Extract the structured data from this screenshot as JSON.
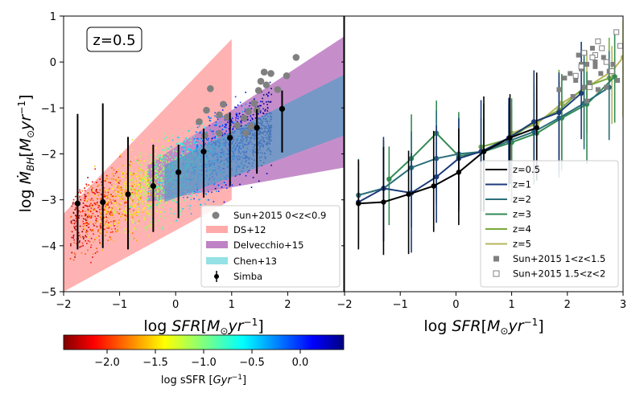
{
  "chart_data": [
    {
      "type": "scatter",
      "panel": "left",
      "annotation": "z=0.5",
      "xlabel": "log SFR[M⊙yr⁻¹]",
      "ylabel": "log Ṁ_BH[M⊙yr⁻¹]",
      "xlim": [
        -2,
        3
      ],
      "ylim": [
        -5,
        1
      ],
      "xticks": [
        -2,
        -1,
        0,
        1,
        2
      ],
      "yticks": [
        -5,
        -4,
        -3,
        -2,
        -1,
        0,
        1
      ],
      "legend_position": "bottom-right",
      "legend": [
        "Sun+2015 0<z<0.9",
        "DS+12",
        "Delvecchio+15",
        "Chen+13",
        "Simba"
      ],
      "simba": {
        "x": [
          -1.75,
          -1.3,
          -0.85,
          -0.4,
          0.05,
          0.5,
          0.97,
          1.45,
          1.9
        ],
        "y": [
          -3.08,
          -3.05,
          -2.88,
          -2.7,
          -2.4,
          -1.95,
          -1.65,
          -1.43,
          -1.02
        ],
        "err_low": [
          1.0,
          1.0,
          1.2,
          1.0,
          1.0,
          1.0,
          1.05,
          1.0,
          0.95
        ],
        "err_high": [
          1.95,
          2.15,
          1.25,
          0.9,
          0.6,
          0.5,
          0.55,
          0.4,
          0.4
        ]
      },
      "sun2015": {
        "x": [
          0.55,
          0.62,
          0.78,
          0.85,
          0.92,
          0.42,
          0.52,
          0.78,
          1.1,
          1.22,
          1.3,
          1.35,
          1.4,
          1.48,
          1.52,
          1.58,
          1.62,
          1.7,
          1.82,
          1.98,
          2.15,
          1.25,
          1.45
        ],
        "y": [
          -1.05,
          -0.58,
          -1.15,
          -0.92,
          -1.2,
          -1.3,
          -1.6,
          -1.55,
          -1.38,
          -1.22,
          -1.08,
          -1.4,
          -0.9,
          -0.62,
          -0.42,
          -0.22,
          -0.5,
          -0.25,
          -0.6,
          -0.3,
          0.1,
          -1.55,
          -1.05
        ]
      },
      "bands": {
        "DS+12": {
          "x": [
            -2,
            1
          ],
          "upper": [
            -3.3,
            0.5
          ],
          "lower": [
            -5,
            -3
          ]
        },
        "Delvecchio+15": {
          "x": [
            -0.5,
            3
          ],
          "upper": [
            -2.25,
            0.55
          ],
          "lower": [
            -3.05,
            -2.3
          ]
        },
        "Chen+13": {
          "x": [
            -0.2,
            3
          ],
          "upper": [
            -2.25,
            -0.28
          ],
          "lower": [
            -3.05,
            -1.6
          ]
        }
      },
      "colorbar": {
        "label": "log sSFR [Gyr⁻¹]",
        "range": [
          -2.45,
          0.45
        ],
        "ticks": [
          -2.0,
          -1.5,
          -1.0,
          -0.5,
          0.0
        ],
        "tick_labels": [
          "−2.0",
          "−1.5",
          "−1.0",
          "−0.5",
          "0.0"
        ]
      }
    },
    {
      "type": "line",
      "panel": "right",
      "xlabel": "log SFR[M⊙yr⁻¹]",
      "xlim": [
        -2,
        3
      ],
      "ylim": [
        -5,
        1
      ],
      "xticks": [
        -2,
        -1,
        0,
        1,
        2,
        3
      ],
      "legend_position": "bottom-right",
      "series": [
        {
          "name": "z=0.5",
          "color": "#000000",
          "x": [
            -1.75,
            -1.3,
            -0.85,
            -0.4,
            0.05,
            0.5,
            0.97,
            1.45
          ],
          "y": [
            -3.08,
            -3.05,
            -2.88,
            -2.7,
            -2.4,
            -1.95,
            -1.65,
            -1.43
          ]
        },
        {
          "name": "z=1",
          "color": "#1d3b78",
          "x": [
            -1.75,
            -1.3,
            -0.8,
            -0.35,
            0.05,
            0.45,
            0.95,
            1.4,
            1.85,
            2.25
          ],
          "y": [
            -3.05,
            -2.75,
            -2.85,
            -2.5,
            -2.1,
            -1.95,
            -1.65,
            -1.3,
            -1.1,
            -0.68
          ]
        },
        {
          "name": "z=2",
          "color": "#2b6f7a",
          "x": [
            -1.75,
            -1.3,
            -0.8,
            -0.35,
            0.05,
            0.5,
            0.95,
            1.4,
            1.85,
            2.3,
            2.75
          ],
          "y": [
            -2.9,
            -2.75,
            -2.3,
            -2.1,
            -2.0,
            -1.95,
            -1.72,
            -1.52,
            -1.22,
            -0.9,
            -0.55
          ]
        },
        {
          "name": "z=3",
          "color": "#338a55",
          "x": [
            -1.2,
            -0.8,
            -0.35,
            0.05,
            0.5,
            1.0,
            1.45,
            1.9,
            2.35,
            2.85
          ],
          "y": [
            -2.55,
            -2.1,
            -1.55,
            -2.05,
            -1.95,
            -1.75,
            -1.55,
            -1.22,
            -0.92,
            -0.32
          ]
        },
        {
          "name": "z=4",
          "color": "#79aa3c",
          "x": [
            0.45,
            0.95,
            1.4,
            1.85,
            2.3,
            2.75
          ],
          "y": [
            -1.85,
            -1.68,
            -1.32,
            -1.05,
            -0.55,
            -0.35
          ]
        },
        {
          "name": "z=5",
          "color": "#b5b65a",
          "x": [
            1.0,
            1.45,
            1.9,
            2.35,
            2.8,
            3.0
          ],
          "y": [
            -1.55,
            -1.35,
            -0.9,
            -0.55,
            -0.2,
            0.1
          ]
        }
      ],
      "sun_1_15": {
        "x": [
          2.05,
          2.15,
          2.2,
          2.25,
          2.3,
          2.35,
          2.4,
          2.45,
          2.5,
          2.6,
          2.7,
          2.75,
          2.82,
          2.9,
          1.85,
          1.95,
          2.1,
          2.25,
          2.5,
          2.55,
          2.65,
          2.35
        ],
        "y": [
          -0.25,
          -0.4,
          0.15,
          -0.15,
          -0.55,
          -0.05,
          -0.45,
          0.3,
          0.0,
          -0.25,
          -0.55,
          -0.2,
          -0.05,
          -0.4,
          -0.6,
          -0.35,
          -0.75,
          -0.05,
          -0.1,
          -0.6,
          0.1,
          -0.85
        ]
      },
      "sun_15_2": {
        "x": [
          2.15,
          2.25,
          2.4,
          2.5,
          2.55,
          2.62,
          2.7,
          2.8,
          2.88,
          2.95,
          2.45,
          2.3
        ],
        "y": [
          -0.3,
          -0.1,
          -0.55,
          0.15,
          0.45,
          0.3,
          0.0,
          -0.2,
          0.65,
          0.35,
          0.1,
          0.2
        ]
      }
    }
  ],
  "legend_right_labels": [
    "z=0.5",
    "z=1",
    "z=2",
    "z=3",
    "z=4",
    "z=5",
    "Sun+2015 1<z<1.5",
    "Sun+2015 1.5<z<2"
  ],
  "colors": {
    "ds12": "#ffaaaa",
    "delvecchio": "#bf82c4",
    "chen13": "#94e2e6",
    "sun": "#808080"
  }
}
